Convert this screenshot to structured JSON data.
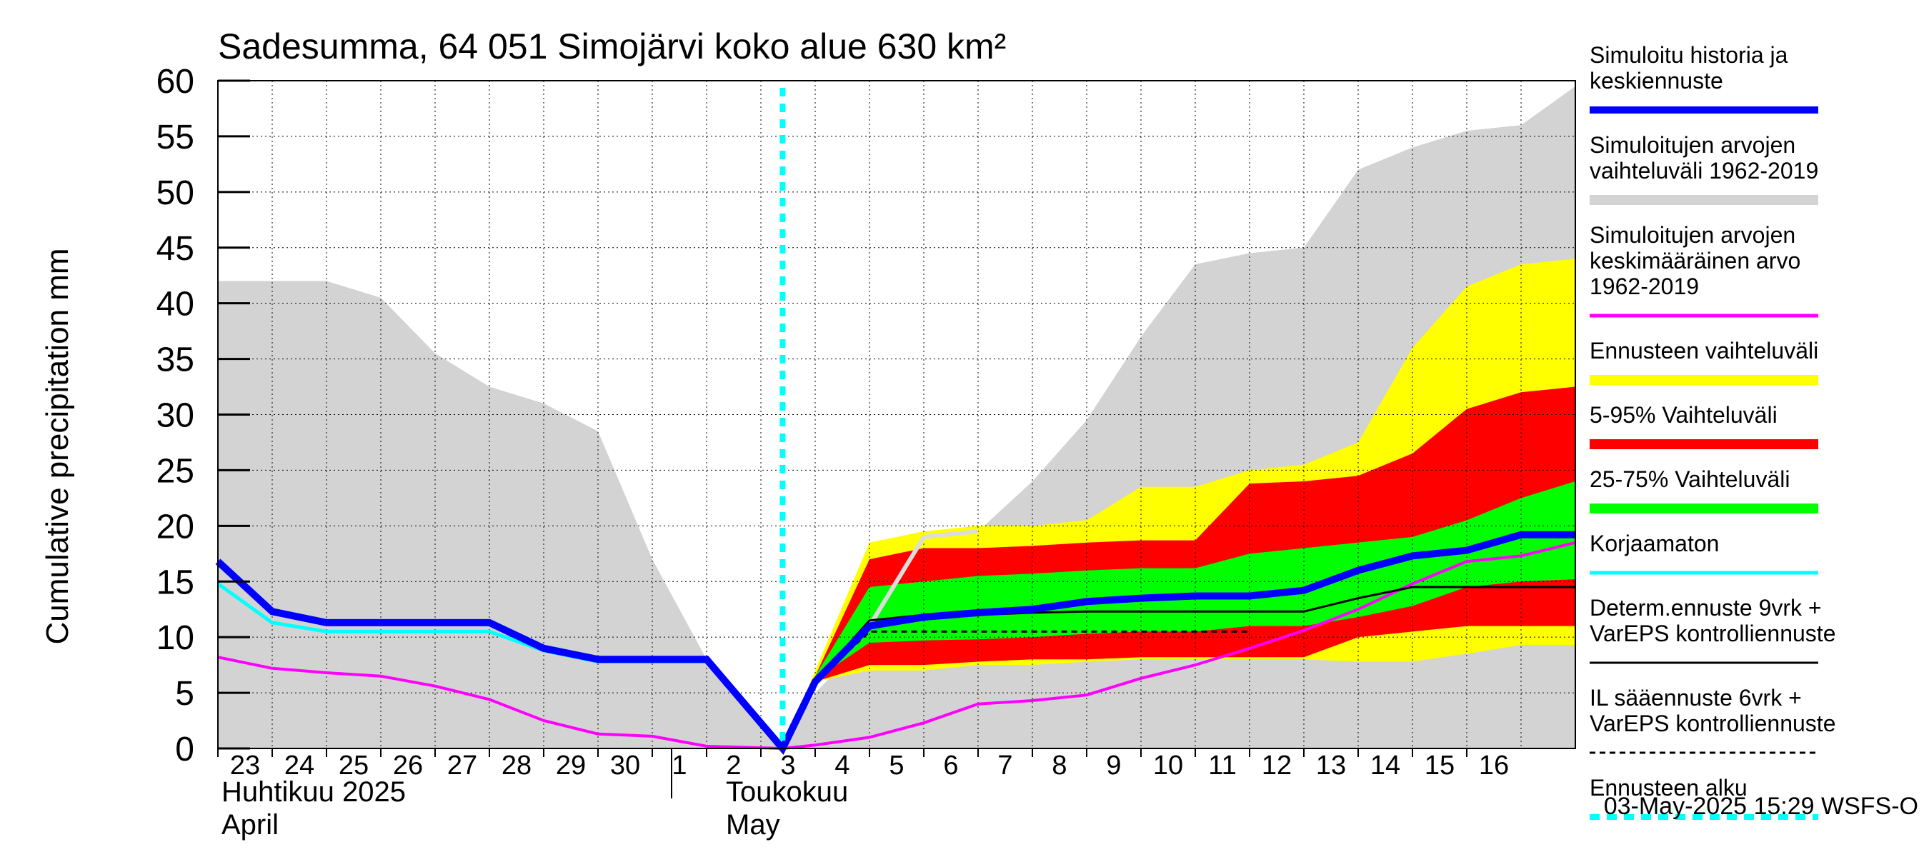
{
  "chart_data": {
    "type": "area",
    "title": "Sadesumma, 64 051 Simojärvi koko alue 630 km²",
    "ylabel": "Cumulative precipitation   mm",
    "ylim": [
      0,
      60
    ],
    "yticks": [
      "0",
      "5",
      "10",
      "15",
      "20",
      "25",
      "30",
      "35",
      "40",
      "45",
      "50",
      "55",
      "60"
    ],
    "xlim": [
      0,
      25
    ],
    "day_labels": [
      "23",
      "24",
      "25",
      "26",
      "27",
      "28",
      "29",
      "30",
      "1",
      "2",
      "3",
      "4",
      "5",
      "6",
      "7",
      "8",
      "9",
      "10",
      "11",
      "12",
      "13",
      "14",
      "15",
      "16"
    ],
    "month_labels": {
      "april_fi": "Huhtikuu  2025",
      "april_en": "April",
      "may_fi": "Toukokuu",
      "may_en": "May"
    },
    "forecast_start_x": 10.4,
    "footer": "03-May-2025 15:29 WSFS-O",
    "legend": [
      {
        "text": [
          "Simuloitu historia ja",
          "keskiennuste"
        ],
        "color": "#0000ff"
      },
      {
        "text": [
          "Simuloitujen arvojen",
          "vaihteluväli 1962-2019"
        ],
        "color": "#d3d3d3"
      },
      {
        "text": [
          "Simuloitujen arvojen",
          "keskimääräinen arvo",
          "   1962-2019"
        ],
        "color": "#ff00ff"
      },
      {
        "text": [
          "Ennusteen vaihteluväli"
        ],
        "color": "#ffff00"
      },
      {
        "text": [
          "5-95% Vaihteluväli"
        ],
        "color": "#ff0000"
      },
      {
        "text": [
          "25-75% Vaihteluväli"
        ],
        "color": "#00ff00"
      },
      {
        "text": [
          "Korjaamaton"
        ],
        "color": "#00ffff"
      },
      {
        "text": [
          "Determ.ennuste 9vrk +",
          "VarEPS kontrolliennuste"
        ],
        "color": "#000000"
      },
      {
        "text": [
          "IL sääennuste 6vrk  +",
          "  VarEPS kontrolliennuste"
        ],
        "color": "#000000"
      },
      {
        "text": [
          "Ennusteen alku"
        ],
        "color": "#00ffff"
      }
    ],
    "series": {
      "hist_range": {
        "x": [
          0,
          1,
          2,
          3,
          4,
          5,
          6,
          7,
          8,
          9,
          10.4,
          11,
          12,
          13,
          14,
          15,
          16,
          17,
          18,
          19,
          20,
          21,
          22,
          23,
          24,
          25
        ],
        "upper": [
          42,
          42,
          42,
          40.5,
          35.5,
          32.5,
          31,
          28.5,
          17,
          8,
          0,
          5,
          10,
          17,
          19.5,
          24,
          29.5,
          37,
          43.5,
          44.5,
          45,
          52,
          54,
          55.5,
          56,
          59.5
        ],
        "lower": [
          0,
          0,
          0,
          0,
          0,
          0,
          0,
          0,
          0,
          0,
          0,
          0,
          0,
          0,
          0,
          0,
          0,
          0,
          0,
          0,
          0,
          0,
          0,
          0,
          0,
          0
        ]
      },
      "ens_range": {
        "x": [
          10.4,
          11,
          12,
          13,
          14,
          15,
          16,
          17,
          18,
          19,
          20,
          21,
          22,
          23,
          24,
          25
        ],
        "upper": [
          0,
          7,
          18.5,
          19.5,
          20,
          20,
          20.5,
          23.5,
          23.5,
          25,
          25.5,
          27.5,
          36,
          41.5,
          43.5,
          44
        ],
        "lower": [
          0,
          6,
          7,
          7,
          7.5,
          7.5,
          7.8,
          8,
          8,
          8,
          8,
          7.8,
          7.8,
          8.5,
          9.3,
          9.3
        ]
      },
      "p5_95": {
        "x": [
          10.4,
          11,
          12,
          13,
          14,
          15,
          16,
          17,
          18,
          19,
          20,
          21,
          22,
          23,
          24,
          25
        ],
        "upper": [
          0,
          6.5,
          17,
          18,
          18,
          18.2,
          18.5,
          18.7,
          18.7,
          23.8,
          24,
          24.5,
          26.5,
          30.5,
          32,
          32.5
        ],
        "lower": [
          0,
          6,
          7.5,
          7.5,
          7.8,
          8,
          8,
          8.2,
          8.2,
          8.2,
          8.2,
          10,
          10.5,
          11,
          11,
          11
        ]
      },
      "p25_75": {
        "x": [
          10.4,
          11,
          12,
          13,
          14,
          15,
          16,
          17,
          18,
          19,
          20,
          21,
          22,
          23,
          24,
          25
        ],
        "upper": [
          0,
          6.5,
          14.5,
          15,
          15.5,
          15.7,
          16,
          16.2,
          16.2,
          17.5,
          18,
          18.5,
          19,
          20.5,
          22.5,
          24
        ],
        "lower": [
          0,
          6.2,
          9.5,
          9.7,
          9.8,
          10,
          10.3,
          10.5,
          10.5,
          11,
          11,
          11.8,
          12.8,
          14.5,
          15,
          15.2
        ]
      },
      "hist_mean": {
        "x": [
          0,
          1,
          2,
          3,
          4,
          5,
          6,
          7,
          8,
          9,
          10.4,
          11,
          12,
          13,
          14,
          15,
          16,
          17,
          18,
          19,
          20,
          21,
          22,
          23,
          24,
          25
        ],
        "y": [
          8.2,
          7.2,
          6.8,
          6.5,
          5.6,
          4.4,
          2.5,
          1.3,
          1.1,
          0.2,
          0,
          0.3,
          1.0,
          2.3,
          4.0,
          4.3,
          4.8,
          6.3,
          7.5,
          9.0,
          10.6,
          12.5,
          14.8,
          16.8,
          17.3,
          18.5
        ]
      },
      "corrected_gray": {
        "x": [
          10.4,
          11,
          12,
          13,
          14
        ],
        "y": [
          0,
          6,
          11,
          19,
          19.5
        ]
      },
      "il_forecast": {
        "x": [
          10.4,
          11,
          12,
          13,
          14,
          15,
          16,
          17,
          18,
          19
        ],
        "y": [
          0,
          6,
          10.5,
          10.5,
          10.5,
          10.5,
          10.5,
          10.5,
          10.5,
          10.5
        ]
      },
      "determ_forecast": {
        "x": [
          10.4,
          11,
          12,
          13,
          14,
          15,
          16,
          17,
          18,
          19,
          20,
          21,
          22,
          23,
          24,
          25
        ],
        "y": [
          0,
          6,
          11.5,
          12,
          12,
          12.2,
          12.3,
          12.3,
          12.3,
          12.3,
          12.3,
          13.5,
          14.5,
          14.5,
          14.5,
          14.5
        ]
      },
      "uncorrected": {
        "x": [
          0,
          1,
          2,
          3,
          4,
          5,
          6,
          7,
          8,
          9,
          10.4
        ],
        "y": [
          14.8,
          11.3,
          10.5,
          10.5,
          10.5,
          10.5,
          8.8,
          7.8,
          7.8,
          7.8,
          0
        ]
      },
      "sim_history": {
        "x": [
          0,
          1,
          2,
          3,
          4,
          5,
          6,
          7,
          8,
          9,
          10.4,
          11,
          12,
          13,
          14,
          15,
          16,
          17,
          18,
          19,
          20,
          21,
          22,
          23,
          24,
          25
        ],
        "y": [
          16.8,
          12.3,
          11.3,
          11.3,
          11.3,
          11.3,
          9.0,
          8.0,
          8.0,
          8.0,
          0,
          6,
          11,
          11.8,
          12.2,
          12.5,
          13.2,
          13.5,
          13.7,
          13.7,
          14.2,
          16,
          17.3,
          17.8,
          19.2,
          19.2
        ]
      }
    }
  }
}
